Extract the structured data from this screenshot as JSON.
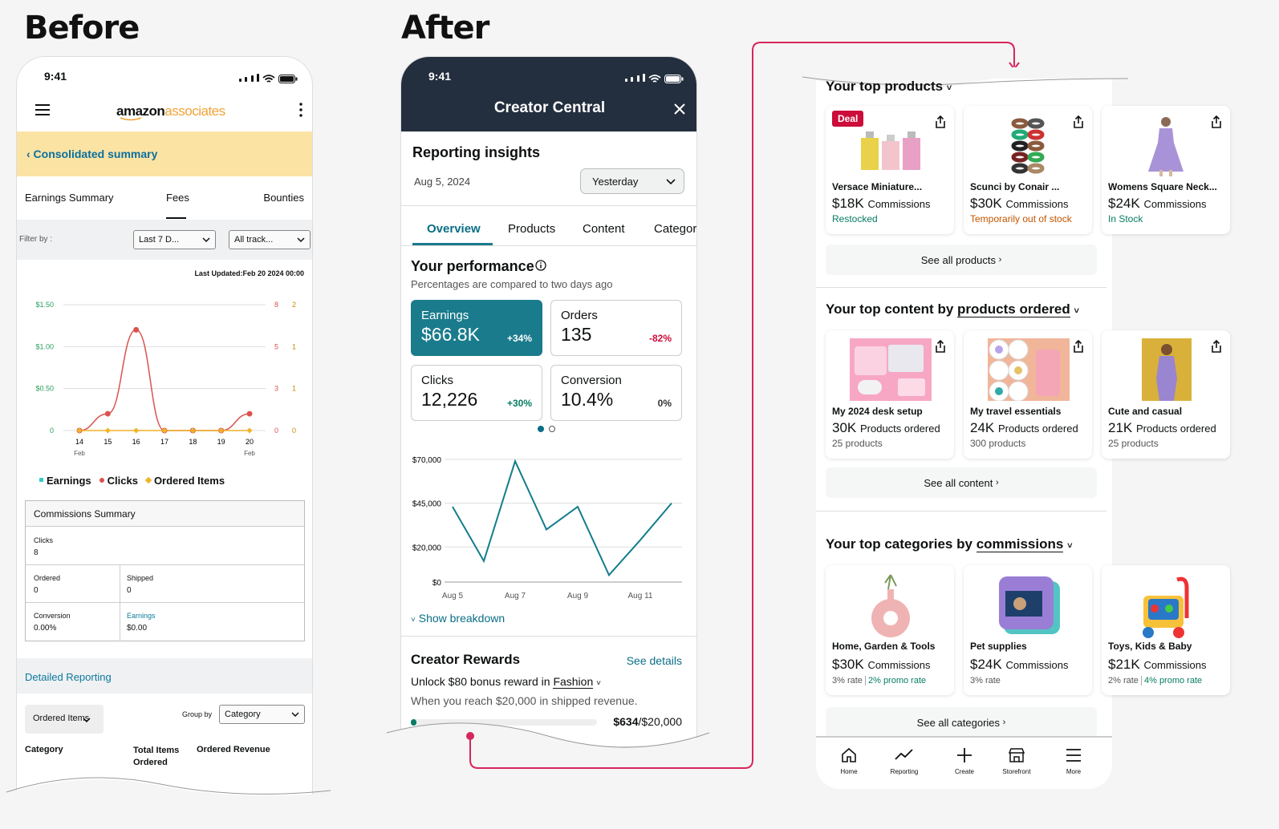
{
  "headings": {
    "before": "Before",
    "after": "After"
  },
  "before": {
    "time": "9:41",
    "logo": {
      "brand": "amazon",
      "suffix": "associates"
    },
    "banner": "‹ Consolidated summary",
    "tabs": [
      "Earnings Summary",
      "Fees",
      "Bounties"
    ],
    "filter": {
      "label": "Filter by :",
      "select1": "Last 7 D...",
      "select2": "All track..."
    },
    "last_updated": "Last Updated:Feb 20 2024 00:00",
    "legend": [
      "Earnings",
      "Clicks",
      "Ordered Items"
    ],
    "commissions": {
      "title": "Commissions Summary",
      "clicks_label": "Clicks",
      "clicks_value": "8",
      "ordered_label": "Ordered",
      "ordered_value": "0",
      "shipped_label": "Shipped",
      "shipped_value": "0",
      "conversion_label": "Conversion",
      "conversion_value": "0.00%",
      "earnings_label": "Earnings",
      "earnings_value": "$0.00"
    },
    "detailed_reporting": "Detailed Reporting",
    "ordered_items": "Ordered Items",
    "group_by_label": "Group by",
    "group_by_value": "Category",
    "columns": [
      "Category",
      "Total Items Ordered",
      "Ordered Revenue"
    ]
  },
  "after": {
    "time": "9:41",
    "header_title": "Creator Central",
    "reporting_title": "Reporting insights",
    "date": "Aug 5, 2024",
    "period": "Yesterday",
    "tabs": [
      "Overview",
      "Products",
      "Content",
      "Categor"
    ],
    "performance_title": "Your performance",
    "performance_sub": "Percentages are compared to two days ago",
    "metrics": [
      {
        "label": "Earnings",
        "value": "$66.8K",
        "change": "+34%"
      },
      {
        "label": "Orders",
        "value": "135",
        "change": "-82%"
      },
      {
        "label": "Clicks",
        "value": "12,226",
        "change": "+30%"
      },
      {
        "label": "Conversion",
        "value": "10.4%",
        "change": "0%"
      }
    ],
    "show_breakdown": "Show breakdown",
    "rewards": {
      "title": "Creator Rewards",
      "see_details": "See details",
      "unlock": "Unlock $80 bonus reward in",
      "category": "Fashion",
      "reach": "When you reach $20,000 in shipped revenue.",
      "progress_current": "$634",
      "progress_total": "/$20,000",
      "progress_fraction": 0.032
    }
  },
  "right": {
    "top_products": {
      "title": "Your top products",
      "see_all": "See all products",
      "items": [
        {
          "badge": "Deal",
          "name": "Versace Miniature...",
          "value": "$18K",
          "metric": "Commissions",
          "status": "Restocked",
          "status_color": "#067d62"
        },
        {
          "name": "Scunci by Conair ...",
          "value": "$30K",
          "metric": "Commissions",
          "status": "Temporarily out of stock",
          "status_color": "#c45500"
        },
        {
          "name": "Womens Square Neck...",
          "value": "$24K",
          "metric": "Commissions",
          "status": "In Stock",
          "status_color": "#067d62"
        }
      ]
    },
    "top_content": {
      "title_prefix": "Your top content by",
      "title_link": "products ordered",
      "see_all": "See all content",
      "items": [
        {
          "name": "My 2024 desk setup",
          "value": "30K",
          "metric": "Products ordered",
          "sub": "25 products"
        },
        {
          "name": "My travel essentials",
          "value": "24K",
          "metric": "Products ordered",
          "sub": "300 products"
        },
        {
          "name": "Cute and casual",
          "value": "21K",
          "metric": "Products ordered",
          "sub": "25 products"
        }
      ]
    },
    "top_categories": {
      "title_prefix": "Your top categories by",
      "title_link": "commissions",
      "see_all": "See all categories",
      "items": [
        {
          "name": "Home, Garden & Tools",
          "value": "$30K",
          "metric": "Commissions",
          "rate": "3% rate",
          "promo": "2% promo rate"
        },
        {
          "name": "Pet supplies",
          "value": "$24K",
          "metric": "Commissions",
          "rate": "3% rate",
          "promo": ""
        },
        {
          "name": "Toys, Kids & Baby",
          "value": "$21K",
          "metric": "Commissions",
          "rate": "2% rate",
          "promo": "4% promo rate"
        }
      ]
    },
    "nav": [
      "Home",
      "Reporting",
      "Create",
      "Storefront",
      "More"
    ]
  },
  "colors": {
    "teal": "#1a7b8c",
    "navy": "#232f3e",
    "banner": "#fbe3a4",
    "link": "#0a7a9e",
    "accent_pink": "#d6265b",
    "green": "#067d62",
    "red": "#cc0c39"
  },
  "chart_data": [
    {
      "type": "line",
      "title": "",
      "x": [
        "14 Feb",
        "15",
        "16",
        "17",
        "18",
        "19",
        "20 Feb"
      ],
      "series": [
        {
          "name": "Clicks",
          "values": [
            0,
            0.2,
            1.2,
            0,
            0,
            0,
            0.2
          ]
        },
        {
          "name": "Ordered Items",
          "values": [
            0,
            0,
            0,
            0,
            0,
            0,
            0
          ]
        }
      ],
      "y_left_ticks": [
        "0",
        "$0.50",
        "$1.00",
        "$1.50"
      ],
      "y_mid_ticks": [
        "0",
        "3",
        "5",
        "8"
      ],
      "y_right_ticks": [
        "0",
        "1",
        "1",
        "2"
      ],
      "ylim": [
        0,
        1.5
      ]
    },
    {
      "type": "line",
      "title": "",
      "x": [
        "Aug 5",
        "Aug 6",
        "Aug 7",
        "Aug 8",
        "Aug 9",
        "Aug 10",
        "Aug 11",
        "Aug 12"
      ],
      "series": [
        {
          "name": "",
          "values": [
            43000,
            12000,
            69000,
            30000,
            43000,
            4000,
            24000,
            45000
          ]
        }
      ],
      "y_ticks": [
        "$0",
        "$20,000",
        "$45,000",
        "$70,000"
      ],
      "ylim": [
        0,
        70000
      ]
    }
  ]
}
